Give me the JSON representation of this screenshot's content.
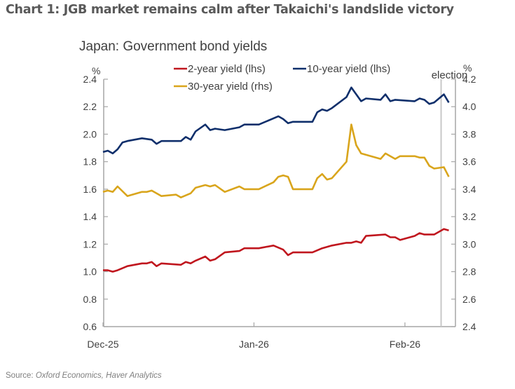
{
  "headline": "Chart 1: JGB market remains calm after Takaichi's landslide victory",
  "source_label": "Source:",
  "source_text": "Oxford Economics, Haver Analytics",
  "chart_data": {
    "type": "line",
    "title": "Japan: Government bond yields",
    "left_axis": {
      "unit": "%",
      "ylim": [
        0.6,
        2.4
      ],
      "ticks": [
        "0.6",
        "0.8",
        "1.0",
        "1.2",
        "1.4",
        "1.6",
        "1.8",
        "2.0",
        "2.2",
        "2.4"
      ]
    },
    "right_axis": {
      "unit": "%",
      "ylim": [
        2.4,
        4.2
      ],
      "ticks": [
        "2.4",
        "2.6",
        "2.8",
        "3.0",
        "3.2",
        "3.4",
        "3.6",
        "3.8",
        "4.0",
        "4.2"
      ]
    },
    "x_ticks": [
      {
        "label": "Dec-25",
        "date": "2025-12-01"
      },
      {
        "label": "Jan-26",
        "date": "2026-01-01"
      },
      {
        "label": "Feb-26",
        "date": "2026-02-01"
      }
    ],
    "x_range": [
      "2025-12-01",
      "2026-02-11"
    ],
    "grid": false,
    "legend": "top",
    "annotation": {
      "label": "election",
      "date": "2026-02-08"
    },
    "series": [
      {
        "name": "2-year yield (lhs)",
        "axis": "left",
        "color": "#c0161e",
        "points": [
          [
            "2025-12-01",
            1.01
          ],
          [
            "2025-12-02",
            1.01
          ],
          [
            "2025-12-03",
            1.0
          ],
          [
            "2025-12-04",
            1.01
          ],
          [
            "2025-12-06",
            1.04
          ],
          [
            "2025-12-09",
            1.06
          ],
          [
            "2025-12-10",
            1.06
          ],
          [
            "2025-12-11",
            1.07
          ],
          [
            "2025-12-12",
            1.04
          ],
          [
            "2025-12-13",
            1.06
          ],
          [
            "2025-12-17",
            1.05
          ],
          [
            "2025-12-18",
            1.07
          ],
          [
            "2025-12-19",
            1.06
          ],
          [
            "2025-12-20",
            1.08
          ],
          [
            "2025-12-22",
            1.11
          ],
          [
            "2025-12-23",
            1.08
          ],
          [
            "2025-12-24",
            1.09
          ],
          [
            "2025-12-26",
            1.14
          ],
          [
            "2025-12-29",
            1.15
          ],
          [
            "2025-12-30",
            1.17
          ],
          [
            "2026-01-02",
            1.17
          ],
          [
            "2026-01-05",
            1.19
          ],
          [
            "2026-01-07",
            1.16
          ],
          [
            "2026-01-08",
            1.12
          ],
          [
            "2026-01-09",
            1.14
          ],
          [
            "2026-01-13",
            1.14
          ],
          [
            "2026-01-15",
            1.17
          ],
          [
            "2026-01-17",
            1.19
          ],
          [
            "2026-01-20",
            1.21
          ],
          [
            "2026-01-21",
            1.21
          ],
          [
            "2026-01-22",
            1.22
          ],
          [
            "2026-01-23",
            1.21
          ],
          [
            "2026-01-24",
            1.26
          ],
          [
            "2026-01-28",
            1.27
          ],
          [
            "2026-01-29",
            1.25
          ],
          [
            "2026-01-30",
            1.25
          ],
          [
            "2026-01-31",
            1.23
          ],
          [
            "2026-02-03",
            1.26
          ],
          [
            "2026-02-04",
            1.28
          ],
          [
            "2026-02-05",
            1.27
          ],
          [
            "2026-02-07",
            1.27
          ],
          [
            "2026-02-09",
            1.31
          ],
          [
            "2026-02-10",
            1.3
          ]
        ]
      },
      {
        "name": "10-year yield (lhs)",
        "axis": "left",
        "color": "#0f2f6b",
        "points": [
          [
            "2025-12-01",
            1.87
          ],
          [
            "2025-12-02",
            1.88
          ],
          [
            "2025-12-03",
            1.86
          ],
          [
            "2025-12-04",
            1.89
          ],
          [
            "2025-12-05",
            1.94
          ],
          [
            "2025-12-06",
            1.95
          ],
          [
            "2025-12-09",
            1.97
          ],
          [
            "2025-12-11",
            1.96
          ],
          [
            "2025-12-12",
            1.93
          ],
          [
            "2025-12-13",
            1.95
          ],
          [
            "2025-12-17",
            1.95
          ],
          [
            "2025-12-18",
            1.98
          ],
          [
            "2025-12-19",
            1.96
          ],
          [
            "2025-12-20",
            2.02
          ],
          [
            "2025-12-22",
            2.07
          ],
          [
            "2025-12-23",
            2.03
          ],
          [
            "2025-12-24",
            2.04
          ],
          [
            "2025-12-26",
            2.03
          ],
          [
            "2025-12-29",
            2.05
          ],
          [
            "2025-12-30",
            2.07
          ],
          [
            "2026-01-02",
            2.07
          ],
          [
            "2026-01-06",
            2.13
          ],
          [
            "2026-01-07",
            2.11
          ],
          [
            "2026-01-08",
            2.08
          ],
          [
            "2026-01-09",
            2.09
          ],
          [
            "2026-01-13",
            2.09
          ],
          [
            "2026-01-14",
            2.16
          ],
          [
            "2026-01-15",
            2.18
          ],
          [
            "2026-01-16",
            2.17
          ],
          [
            "2026-01-17",
            2.19
          ],
          [
            "2026-01-20",
            2.27
          ],
          [
            "2026-01-21",
            2.34
          ],
          [
            "2026-01-23",
            2.24
          ],
          [
            "2026-01-24",
            2.26
          ],
          [
            "2026-01-27",
            2.25
          ],
          [
            "2026-01-28",
            2.29
          ],
          [
            "2026-01-29",
            2.24
          ],
          [
            "2026-01-30",
            2.25
          ],
          [
            "2026-02-03",
            2.24
          ],
          [
            "2026-02-04",
            2.26
          ],
          [
            "2026-02-05",
            2.25
          ],
          [
            "2026-02-06",
            2.22
          ],
          [
            "2026-02-07",
            2.23
          ],
          [
            "2026-02-09",
            2.29
          ],
          [
            "2026-02-10",
            2.23
          ]
        ]
      },
      {
        "name": "30-year yield (rhs)",
        "axis": "right",
        "color": "#d9a51c",
        "points": [
          [
            "2025-12-01",
            3.38
          ],
          [
            "2025-12-02",
            3.39
          ],
          [
            "2025-12-03",
            3.38
          ],
          [
            "2025-12-04",
            3.42
          ],
          [
            "2025-12-06",
            3.35
          ],
          [
            "2025-12-09",
            3.38
          ],
          [
            "2025-12-10",
            3.38
          ],
          [
            "2025-12-11",
            3.39
          ],
          [
            "2025-12-13",
            3.35
          ],
          [
            "2025-12-16",
            3.36
          ],
          [
            "2025-12-17",
            3.34
          ],
          [
            "2025-12-19",
            3.37
          ],
          [
            "2025-12-20",
            3.41
          ],
          [
            "2025-12-22",
            3.43
          ],
          [
            "2025-12-23",
            3.42
          ],
          [
            "2025-12-24",
            3.43
          ],
          [
            "2025-12-26",
            3.38
          ],
          [
            "2025-12-29",
            3.42
          ],
          [
            "2025-12-30",
            3.4
          ],
          [
            "2026-01-02",
            3.4
          ],
          [
            "2026-01-05",
            3.45
          ],
          [
            "2026-01-06",
            3.49
          ],
          [
            "2026-01-07",
            3.5
          ],
          [
            "2026-01-08",
            3.49
          ],
          [
            "2026-01-09",
            3.4
          ],
          [
            "2026-01-13",
            3.4
          ],
          [
            "2026-01-14",
            3.48
          ],
          [
            "2026-01-15",
            3.51
          ],
          [
            "2026-01-16",
            3.47
          ],
          [
            "2026-01-17",
            3.48
          ],
          [
            "2026-01-20",
            3.6
          ],
          [
            "2026-01-21",
            3.87
          ],
          [
            "2026-01-22",
            3.72
          ],
          [
            "2026-01-23",
            3.66
          ],
          [
            "2026-01-27",
            3.62
          ],
          [
            "2026-01-28",
            3.66
          ],
          [
            "2026-01-30",
            3.62
          ],
          [
            "2026-01-31",
            3.64
          ],
          [
            "2026-02-03",
            3.64
          ],
          [
            "2026-02-04",
            3.63
          ],
          [
            "2026-02-05",
            3.63
          ],
          [
            "2026-02-06",
            3.57
          ],
          [
            "2026-02-07",
            3.55
          ],
          [
            "2026-02-09",
            3.56
          ],
          [
            "2026-02-10",
            3.49
          ]
        ]
      }
    ]
  }
}
